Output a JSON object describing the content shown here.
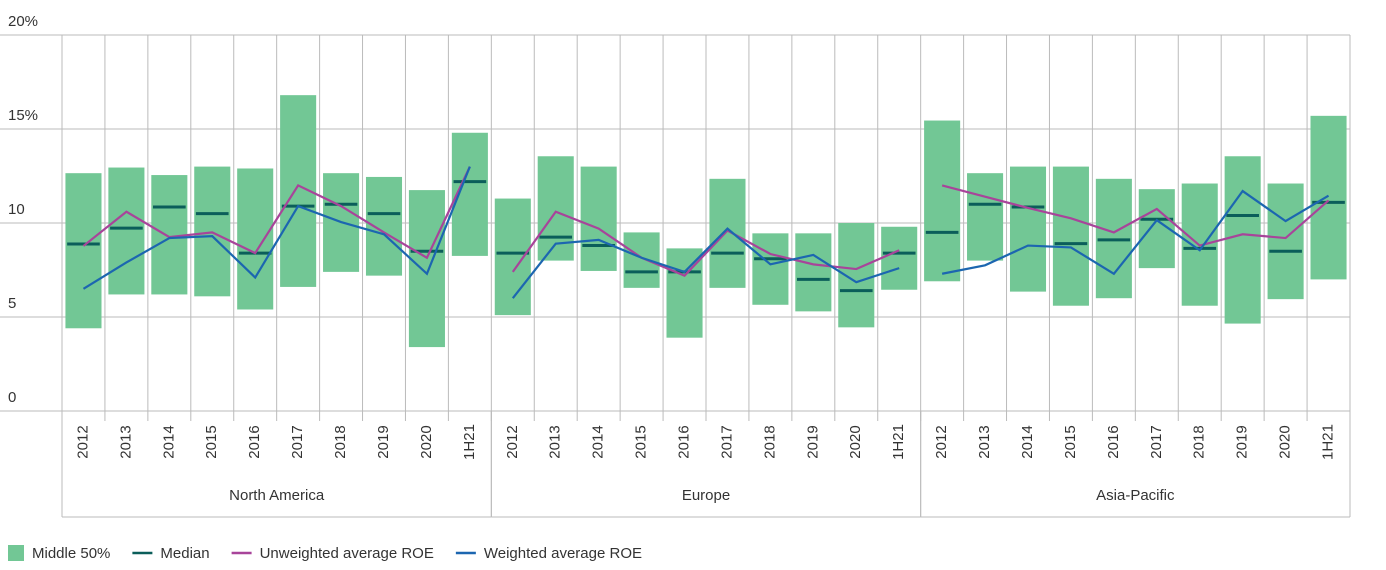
{
  "chart_data": {
    "type": "range-bar-line",
    "groups": [
      {
        "name": "North America",
        "categories": [
          "2012",
          "2013",
          "2014",
          "2015",
          "2016",
          "2017",
          "2018",
          "2019",
          "2020",
          "1H21"
        ]
      },
      {
        "name": "Europe",
        "categories": [
          "2012",
          "2013",
          "2014",
          "2015",
          "2016",
          "2017",
          "2018",
          "2019",
          "2020",
          "1H21"
        ]
      },
      {
        "name": "Asia-Pacific",
        "categories": [
          "2012",
          "2013",
          "2014",
          "2015",
          "2016",
          "2017",
          "2018",
          "2019",
          "2020",
          "1H21"
        ]
      }
    ],
    "range": {
      "name": "Middle 50%",
      "color": "#72c795",
      "low": [
        4.4,
        6.2,
        6.2,
        6.1,
        5.4,
        6.6,
        7.4,
        7.2,
        3.4,
        8.25,
        5.1,
        8.0,
        7.45,
        6.55,
        3.9,
        6.55,
        5.65,
        5.3,
        4.45,
        6.45,
        6.9,
        8.0,
        6.35,
        5.6,
        6.0,
        7.6,
        5.6,
        4.65,
        5.95,
        7.0
      ],
      "high": [
        12.65,
        12.95,
        12.55,
        13.0,
        12.9,
        16.8,
        12.65,
        12.45,
        11.75,
        14.8,
        11.3,
        13.55,
        13.0,
        9.5,
        8.65,
        12.35,
        9.45,
        9.45,
        10.0,
        9.8,
        15.45,
        12.65,
        13.0,
        13.0,
        12.35,
        11.8,
        12.1,
        13.55,
        12.1,
        15.7
      ]
    },
    "series": [
      {
        "name": "Median",
        "color": "#0b5e5a",
        "kind": "tick",
        "values": [
          8.88,
          9.73,
          10.85,
          10.5,
          8.4,
          10.9,
          11.0,
          10.5,
          8.5,
          12.2,
          8.4,
          9.25,
          8.8,
          7.4,
          7.4,
          8.4,
          8.1,
          7.0,
          6.4,
          8.4,
          9.5,
          11.0,
          10.85,
          8.9,
          9.1,
          10.2,
          8.65,
          10.4,
          8.5,
          11.1
        ]
      },
      {
        "name": "Unweighted average ROE",
        "color": "#a8449a",
        "kind": "line",
        "values": [
          8.78,
          10.6,
          9.25,
          9.5,
          8.4,
          12.0,
          10.9,
          9.5,
          8.15,
          13.0,
          7.4,
          10.6,
          9.7,
          8.15,
          7.2,
          9.6,
          8.35,
          7.8,
          7.55,
          8.55,
          12.0,
          11.4,
          10.8,
          10.25,
          9.5,
          10.75,
          8.8,
          9.4,
          9.2,
          11.2
        ]
      },
      {
        "name": "Weighted average ROE",
        "color": "#1c66b0",
        "kind": "line",
        "values": [
          6.5,
          7.9,
          9.2,
          9.3,
          7.1,
          10.9,
          10.05,
          9.4,
          7.3,
          13.0,
          6.0,
          8.9,
          9.1,
          8.15,
          7.4,
          9.7,
          7.8,
          8.3,
          6.85,
          7.6,
          7.3,
          7.75,
          8.8,
          8.7,
          7.3,
          10.15,
          8.55,
          11.7,
          10.1,
          11.45
        ]
      }
    ],
    "ylim": [
      0,
      20
    ],
    "yticks": [
      0,
      5,
      10,
      {
        "value": 15,
        "label": "15%"
      },
      {
        "value": 20,
        "label": "20%"
      }
    ],
    "grid": true
  }
}
